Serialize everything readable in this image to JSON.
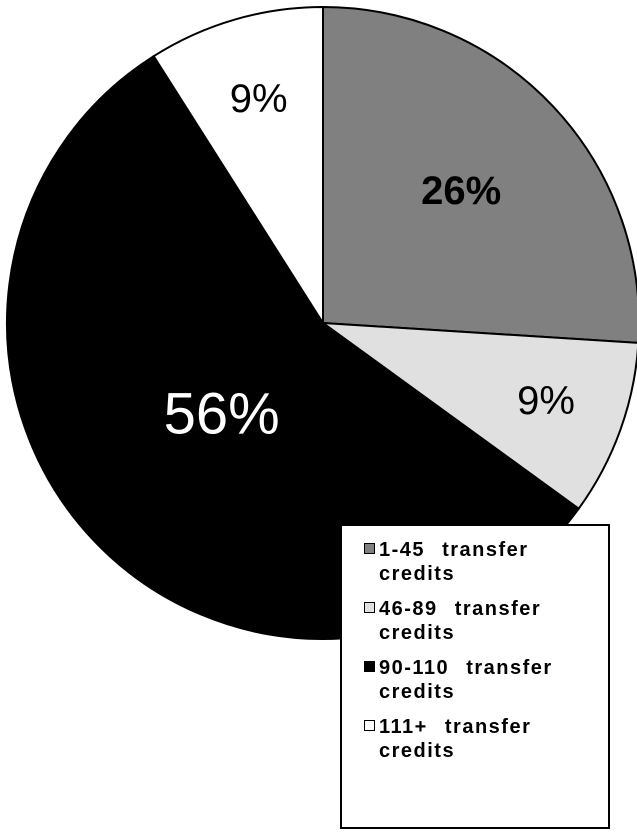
{
  "chart_data": {
    "type": "pie",
    "categories": [
      "1-45 transfer credits",
      "46-89 transfer credits",
      "90-110 transfer credits",
      "111+ transfer credits"
    ],
    "values": [
      26,
      9,
      56,
      9
    ],
    "value_labels": [
      "26%",
      "9%",
      "56%",
      "9%"
    ],
    "colors": [
      "#808080",
      "#e0e0e0",
      "#000000",
      "#ffffff"
    ],
    "legend": "bottom-right"
  }
}
